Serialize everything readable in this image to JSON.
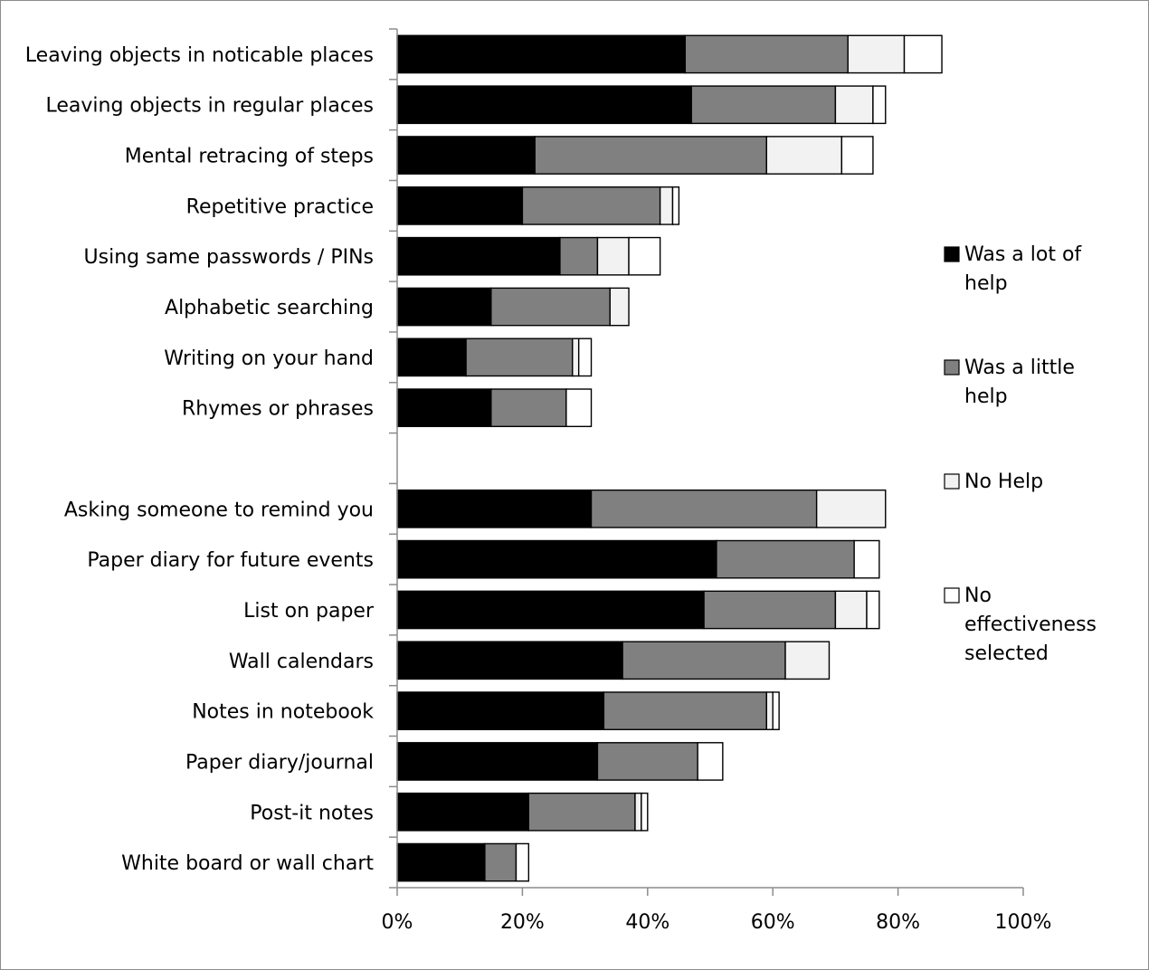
{
  "chart_data": {
    "type": "bar",
    "orientation": "horizontal",
    "stacked": true,
    "categories": [
      "Leaving objects in noticable places",
      "Leaving objects in regular places",
      "Mental retracing of steps",
      "Repetitive practice",
      "Using same passwords / PINs",
      "Alphabetic searching",
      "Writing on your hand",
      "Rhymes or phrases",
      "",
      "Asking someone to remind you",
      "Paper diary for future events",
      "List on paper",
      "Wall calendars",
      "Notes in notebook",
      "Paper diary/journal",
      "Post-it notes",
      "White board or wall chart"
    ],
    "series": [
      {
        "name": "Was a lot of help",
        "color": "#000000",
        "values": [
          46,
          47,
          22,
          20,
          26,
          15,
          11,
          15,
          0,
          31,
          51,
          49,
          36,
          33,
          32,
          21,
          14
        ]
      },
      {
        "name": "Was a little help",
        "color": "#808080",
        "values": [
          26,
          23,
          37,
          22,
          6,
          19,
          17,
          12,
          0,
          36,
          22,
          21,
          26,
          26,
          16,
          17,
          5
        ]
      },
      {
        "name": "No Help",
        "color": "#f2f2f2",
        "values": [
          9,
          6,
          12,
          2,
          5,
          3,
          1,
          0,
          0,
          11,
          0,
          5,
          7,
          1,
          0,
          1,
          0
        ]
      },
      {
        "name": "No effectiveness selected",
        "color": "#ffffff",
        "values": [
          6,
          2,
          5,
          1,
          5,
          0,
          2,
          4,
          0,
          0,
          4,
          2,
          0,
          1,
          4,
          1,
          2
        ]
      }
    ],
    "xlim": [
      0,
      100
    ],
    "xticks": [
      "0%",
      "20%",
      "40%",
      "60%",
      "80%",
      "100%"
    ],
    "xlabel": "",
    "ylabel": "",
    "title": "",
    "legend": {
      "position": "right",
      "entries": [
        {
          "lines": [
            "Was a lot of",
            "help"
          ]
        },
        {
          "lines": [
            "Was a little",
            "help"
          ]
        },
        {
          "lines": [
            "No Help"
          ]
        },
        {
          "lines": [
            "No",
            "effectiveness",
            "selected"
          ]
        }
      ]
    },
    "grid": false
  }
}
